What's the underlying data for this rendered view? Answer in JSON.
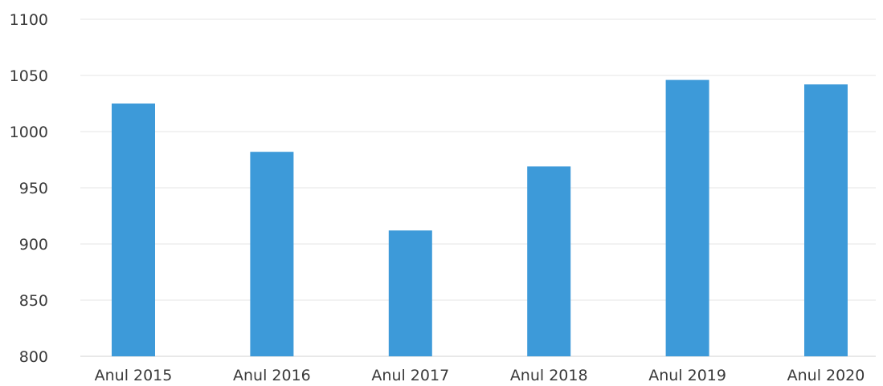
{
  "chart_data": {
    "type": "bar",
    "categories": [
      "Anul 2015",
      "Anul 2016",
      "Anul 2017",
      "Anul 2018",
      "Anul 2019",
      "Anul 2020"
    ],
    "values": [
      1025,
      982,
      912,
      969,
      1046,
      1042
    ],
    "ylim": [
      800,
      1100
    ],
    "yticks": [
      800,
      850,
      900,
      950,
      1000,
      1050,
      1100
    ],
    "grid": true,
    "bar_color": "#3d9ad9",
    "title": "",
    "xlabel": "",
    "ylabel": ""
  }
}
